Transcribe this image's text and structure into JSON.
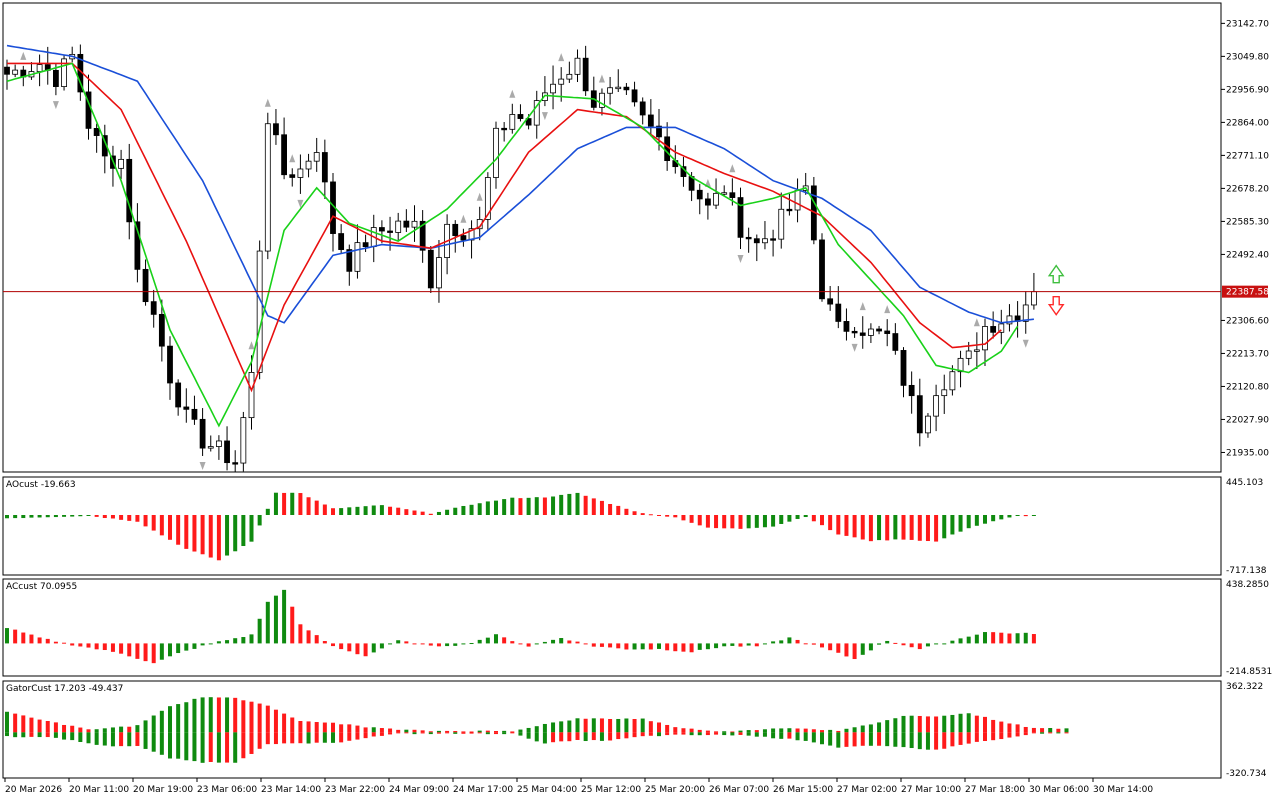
{
  "colors": {
    "bull": "#ffffff",
    "bear": "#000000",
    "frame": "#000000",
    "jaw": "#1a4fd8",
    "teeth": "#e81010",
    "lips": "#19d119",
    "up_bar": "#0f8a0f",
    "down_bar": "#ff1a1a",
    "price_line": "#b00000",
    "price_tag_bg": "#c81010",
    "fractal": "#aaaaaa",
    "arrow_up": "#3fbf3f",
    "arrow_down": "#ff2a2a"
  },
  "chart_data": [
    {
      "type": "candlestick",
      "title": "",
      "ylim": [
        21880,
        23200
      ],
      "yticks": [
        "23142.70",
        "23049.80",
        "22956.90",
        "22864.00",
        "22771.10",
        "22678.20",
        "22585.30",
        "22492.40",
        "22306.60",
        "22213.70",
        "22120.80",
        "22027.90",
        "21935.00"
      ],
      "current_price": "22387.58",
      "xticks": [
        "20 Mar 2026",
        "20 Mar 11:00",
        "20 Mar 19:00",
        "23 Mar 06:00",
        "23 Mar 14:00",
        "23 Mar 22:00",
        "24 Mar 09:00",
        "24 Mar 17:00",
        "25 Mar 04:00",
        "25 Mar 12:00",
        "25 Mar 20:00",
        "26 Mar 07:00",
        "26 Mar 15:00",
        "27 Mar 02:00",
        "27 Mar 10:00",
        "27 Mar 18:00",
        "30 Mar 06:00",
        "30 Mar 14:00"
      ],
      "close_path": [
        [
          0,
          23000
        ],
        [
          4,
          23030
        ],
        [
          6,
          22990
        ],
        [
          8,
          23050
        ],
        [
          10,
          22860
        ],
        [
          12,
          22760
        ],
        [
          14,
          22760
        ],
        [
          16,
          22440
        ],
        [
          18,
          22320
        ],
        [
          20,
          22150
        ],
        [
          22,
          22030
        ],
        [
          24,
          21970
        ],
        [
          26,
          21940
        ],
        [
          28,
          21910
        ],
        [
          30,
          22150
        ],
        [
          32,
          22880
        ],
        [
          34,
          22720
        ],
        [
          36,
          22730
        ],
        [
          38,
          22800
        ],
        [
          40,
          22560
        ],
        [
          42,
          22470
        ],
        [
          44,
          22530
        ],
        [
          46,
          22560
        ],
        [
          48,
          22580
        ],
        [
          50,
          22570
        ],
        [
          52,
          22420
        ],
        [
          54,
          22580
        ],
        [
          56,
          22560
        ],
        [
          58,
          22580
        ],
        [
          60,
          22820
        ],
        [
          62,
          22890
        ],
        [
          64,
          22860
        ],
        [
          66,
          22950
        ],
        [
          68,
          23000
        ],
        [
          70,
          23030
        ],
        [
          72,
          22920
        ],
        [
          74,
          22940
        ],
        [
          76,
          22930
        ],
        [
          78,
          22870
        ],
        [
          80,
          22820
        ],
        [
          82,
          22750
        ],
        [
          84,
          22690
        ],
        [
          86,
          22620
        ],
        [
          88,
          22680
        ],
        [
          90,
          22570
        ],
        [
          92,
          22520
        ],
        [
          94,
          22560
        ],
        [
          96,
          22620
        ],
        [
          98,
          22680
        ],
        [
          100,
          22390
        ],
        [
          102,
          22280
        ],
        [
          104,
          22300
        ],
        [
          106,
          22270
        ],
        [
          108,
          22260
        ],
        [
          110,
          22140
        ],
        [
          112,
          22010
        ],
        [
          114,
          22120
        ],
        [
          116,
          22160
        ],
        [
          118,
          22200
        ],
        [
          120,
          22290
        ],
        [
          122,
          22310
        ],
        [
          124,
          22330
        ],
        [
          126,
          22387.58
        ]
      ],
      "alligator": {
        "jaw": [
          [
            0,
            23080
          ],
          [
            8,
            23050
          ],
          [
            16,
            22980
          ],
          [
            24,
            22700
          ],
          [
            32,
            22320
          ],
          [
            34,
            22300
          ],
          [
            40,
            22490
          ],
          [
            46,
            22520
          ],
          [
            52,
            22510
          ],
          [
            58,
            22540
          ],
          [
            64,
            22660
          ],
          [
            70,
            22790
          ],
          [
            76,
            22850
          ],
          [
            82,
            22850
          ],
          [
            88,
            22790
          ],
          [
            94,
            22700
          ],
          [
            100,
            22650
          ],
          [
            106,
            22560
          ],
          [
            112,
            22400
          ],
          [
            118,
            22330
          ],
          [
            122,
            22300
          ],
          [
            126,
            22310
          ]
        ],
        "teeth": [
          [
            0,
            23030
          ],
          [
            8,
            23030
          ],
          [
            14,
            22900
          ],
          [
            22,
            22530
          ],
          [
            30,
            22110
          ],
          [
            34,
            22350
          ],
          [
            40,
            22600
          ],
          [
            46,
            22530
          ],
          [
            52,
            22510
          ],
          [
            58,
            22570
          ],
          [
            64,
            22780
          ],
          [
            70,
            22900
          ],
          [
            76,
            22880
          ],
          [
            82,
            22780
          ],
          [
            88,
            22720
          ],
          [
            94,
            22670
          ],
          [
            100,
            22600
          ],
          [
            106,
            22470
          ],
          [
            112,
            22300
          ],
          [
            116,
            22230
          ],
          [
            120,
            22240
          ],
          [
            122,
            22280
          ]
        ],
        "lips": [
          [
            0,
            22980
          ],
          [
            8,
            23030
          ],
          [
            14,
            22700
          ],
          [
            20,
            22280
          ],
          [
            26,
            22010
          ],
          [
            30,
            22190
          ],
          [
            34,
            22560
          ],
          [
            38,
            22680
          ],
          [
            42,
            22580
          ],
          [
            48,
            22530
          ],
          [
            54,
            22620
          ],
          [
            60,
            22760
          ],
          [
            66,
            22940
          ],
          [
            72,
            22930
          ],
          [
            78,
            22850
          ],
          [
            84,
            22710
          ],
          [
            90,
            22630
          ],
          [
            94,
            22650
          ],
          [
            98,
            22680
          ],
          [
            102,
            22520
          ],
          [
            106,
            22420
          ],
          [
            110,
            22320
          ],
          [
            114,
            22180
          ],
          [
            118,
            22160
          ],
          [
            122,
            22220
          ],
          [
            124,
            22290
          ]
        ]
      },
      "signals": [
        {
          "type": "up-arrow",
          "color_key": "arrow_up"
        },
        {
          "type": "down-arrow",
          "color_key": "arrow_down"
        }
      ]
    },
    {
      "type": "histogram",
      "title": "AOcust -19.663",
      "ylim": [
        -717.138,
        445.103
      ],
      "max_label": "445.103",
      "min_label": "-717.138",
      "profile": [
        [
          0,
          -40
        ],
        [
          10,
          -10
        ],
        [
          16,
          -80
        ],
        [
          22,
          -420
        ],
        [
          26,
          -560
        ],
        [
          30,
          -330
        ],
        [
          33,
          280
        ],
        [
          36,
          270
        ],
        [
          40,
          80
        ],
        [
          46,
          120
        ],
        [
          52,
          20
        ],
        [
          58,
          150
        ],
        [
          62,
          210
        ],
        [
          66,
          220
        ],
        [
          70,
          270
        ],
        [
          74,
          140
        ],
        [
          78,
          20
        ],
        [
          82,
          -30
        ],
        [
          86,
          -160
        ],
        [
          90,
          -170
        ],
        [
          94,
          -140
        ],
        [
          98,
          -20
        ],
        [
          102,
          -240
        ],
        [
          106,
          -320
        ],
        [
          110,
          -300
        ],
        [
          114,
          -330
        ],
        [
          118,
          -160
        ],
        [
          121,
          -80
        ],
        [
          124,
          -10
        ]
      ]
    },
    {
      "type": "histogram",
      "title": "ACcust 70.0955",
      "ylim": [
        -214.8531,
        438.285
      ],
      "max_label": "438.2850",
      "min_label": "-214.8531",
      "profile": [
        [
          0,
          110
        ],
        [
          4,
          40
        ],
        [
          8,
          -10
        ],
        [
          14,
          -70
        ],
        [
          18,
          -140
        ],
        [
          21,
          -70
        ],
        [
          25,
          0
        ],
        [
          30,
          60
        ],
        [
          32,
          290
        ],
        [
          34,
          380
        ],
        [
          36,
          130
        ],
        [
          40,
          -20
        ],
        [
          44,
          -90
        ],
        [
          48,
          20
        ],
        [
          52,
          -20
        ],
        [
          56,
          -10
        ],
        [
          60,
          60
        ],
        [
          64,
          -20
        ],
        [
          68,
          40
        ],
        [
          72,
          -20
        ],
        [
          76,
          -40
        ],
        [
          80,
          -40
        ],
        [
          84,
          -60
        ],
        [
          88,
          -20
        ],
        [
          92,
          -20
        ],
        [
          96,
          40
        ],
        [
          100,
          -30
        ],
        [
          104,
          -110
        ],
        [
          108,
          20
        ],
        [
          112,
          -40
        ],
        [
          116,
          20
        ],
        [
          120,
          80
        ],
        [
          124,
          70
        ]
      ]
    },
    {
      "type": "gator",
      "title": "GatorCust 17.203 -49.437",
      "ylim": [
        -320.734,
        362.322
      ],
      "max_label": "362.322",
      "min_label": "-320.734",
      "upper": [
        [
          0,
          150
        ],
        [
          6,
          70
        ],
        [
          10,
          20
        ],
        [
          16,
          50
        ],
        [
          20,
          190
        ],
        [
          24,
          260
        ],
        [
          28,
          250
        ],
        [
          32,
          200
        ],
        [
          36,
          80
        ],
        [
          40,
          70
        ],
        [
          44,
          40
        ],
        [
          48,
          20
        ],
        [
          52,
          10
        ],
        [
          56,
          10
        ],
        [
          62,
          10
        ],
        [
          66,
          60
        ],
        [
          70,
          100
        ],
        [
          74,
          100
        ],
        [
          78,
          100
        ],
        [
          82,
          40
        ],
        [
          86,
          10
        ],
        [
          90,
          10
        ],
        [
          94,
          30
        ],
        [
          98,
          30
        ],
        [
          102,
          10
        ],
        [
          106,
          60
        ],
        [
          110,
          120
        ],
        [
          114,
          120
        ],
        [
          118,
          140
        ],
        [
          122,
          80
        ],
        [
          126,
          30
        ]
      ],
      "lower": [
        [
          0,
          -30
        ],
        [
          6,
          -40
        ],
        [
          12,
          -100
        ],
        [
          16,
          -100
        ],
        [
          20,
          -190
        ],
        [
          24,
          -220
        ],
        [
          28,
          -220
        ],
        [
          32,
          -90
        ],
        [
          36,
          -80
        ],
        [
          40,
          -80
        ],
        [
          44,
          -40
        ],
        [
          48,
          -10
        ],
        [
          52,
          -10
        ],
        [
          56,
          -10
        ],
        [
          62,
          -10
        ],
        [
          66,
          -80
        ],
        [
          70,
          -60
        ],
        [
          74,
          -60
        ],
        [
          78,
          -30
        ],
        [
          82,
          -20
        ],
        [
          86,
          -20
        ],
        [
          90,
          -20
        ],
        [
          94,
          -40
        ],
        [
          98,
          -60
        ],
        [
          102,
          -110
        ],
        [
          106,
          -100
        ],
        [
          110,
          -110
        ],
        [
          114,
          -130
        ],
        [
          118,
          -80
        ],
        [
          122,
          -50
        ],
        [
          126,
          -10
        ]
      ]
    }
  ]
}
